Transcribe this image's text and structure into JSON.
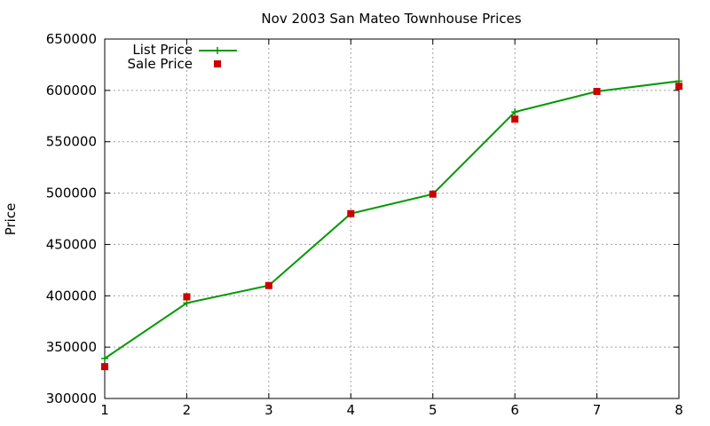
{
  "chart_data": {
    "type": "line",
    "title": "Nov 2003 San Mateo Townhouse Prices",
    "xlabel": "",
    "ylabel": "Price",
    "x": [
      1,
      2,
      3,
      4,
      5,
      6,
      7,
      8
    ],
    "xlim": [
      1,
      8
    ],
    "ylim": [
      300000,
      650000
    ],
    "xticks": [
      1,
      2,
      3,
      4,
      5,
      6,
      7,
      8
    ],
    "yticks": [
      300000,
      350000,
      400000,
      450000,
      500000,
      550000,
      600000,
      650000
    ],
    "grid": true,
    "legend_position": "top-left",
    "series": [
      {
        "name": "List Price",
        "style": "line-with-plus",
        "color": "#009900",
        "values": [
          339000,
          393000,
          410000,
          480000,
          499000,
          579000,
          599000,
          609000
        ]
      },
      {
        "name": "Sale Price",
        "style": "square-points",
        "color": "#cc0000",
        "values": [
          331000,
          399000,
          410000,
          480000,
          499000,
          572000,
          599000,
          604000
        ]
      }
    ]
  }
}
